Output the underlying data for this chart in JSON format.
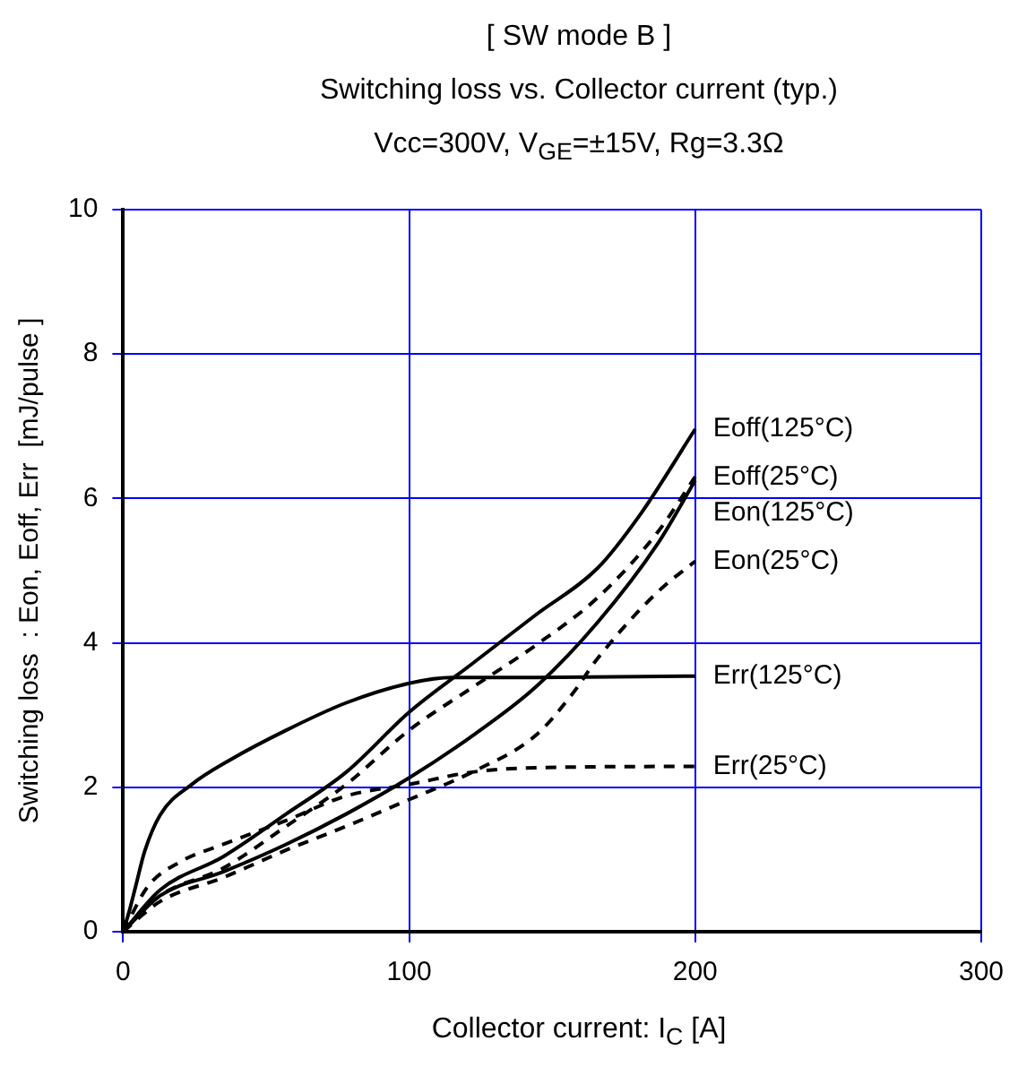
{
  "chart_data": {
    "type": "line",
    "title": "[ SW mode B ]",
    "subtitle": "Switching loss  vs.  Collector current  (typ.)\nVcc=300V,  V$_{GE}$=±15V,  Rg=3.3Ω",
    "xlabel": "Collector current: I$_{C}$ [A]",
    "ylabel": "Switching loss  : Eon, Eoff, Err  [mJ/pulse ]",
    "xlim": [
      0,
      300
    ],
    "xticks": [
      0,
      100,
      200,
      300
    ],
    "ylim": [
      0,
      10
    ],
    "yticks": [
      0,
      2,
      4,
      6,
      8,
      10
    ],
    "grid": true,
    "legend": false,
    "marker": "none",
    "series": [
      {
        "name": "Eoff(125°C)",
        "color": "#000000",
        "line_style": "solid",
        "x": [
          0,
          13,
          35,
          57,
          78,
          100,
          122,
          144,
          166,
          181,
          200
        ],
        "values": [
          0,
          0.58,
          1.04,
          1.63,
          2.21,
          3.04,
          3.71,
          4.38,
          5.04,
          5.79,
          6.96
        ]
      },
      {
        "name": "Eoff(25°C)",
        "color": "#000000",
        "line_style": "dashed",
        "x": [
          0,
          13,
          35,
          57,
          78,
          100,
          122,
          144,
          166,
          187,
          200
        ],
        "values": [
          0,
          0.5,
          0.88,
          1.46,
          2.04,
          2.79,
          3.38,
          3.96,
          4.63,
          5.54,
          6.3
        ]
      },
      {
        "name": "Eon(125°C)",
        "color": "#000000",
        "line_style": "solid",
        "x": [
          0,
          13,
          35,
          57,
          78,
          100,
          122,
          144,
          166,
          187,
          200
        ],
        "values": [
          0,
          0.5,
          0.83,
          1.21,
          1.63,
          2.13,
          2.71,
          3.38,
          4.29,
          5.38,
          6.25
        ]
      },
      {
        "name": "Eon(25°C)",
        "color": "#000000",
        "line_style": "dashed",
        "x": [
          0,
          13,
          35,
          57,
          78,
          100,
          122,
          144,
          157,
          166,
          187,
          200
        ],
        "values": [
          0,
          0.42,
          0.75,
          1.13,
          1.46,
          1.83,
          2.21,
          2.71,
          3.29,
          3.79,
          4.71,
          5.13
        ]
      },
      {
        "name": "Err(125°C)",
        "color": "#000000",
        "line_style": "solid",
        "x": [
          0,
          2.2,
          4.4,
          7.6,
          13,
          24,
          37,
          57,
          78,
          100,
          115,
          144,
          200
        ],
        "values": [
          0,
          0.29,
          0.63,
          1.12,
          1.62,
          2.04,
          2.37,
          2.79,
          3.17,
          3.44,
          3.52,
          3.52,
          3.54
        ]
      },
      {
        "name": "Err(25°C)",
        "color": "#000000",
        "line_style": "dashed",
        "x": [
          0,
          8.7,
          19.6,
          35,
          57,
          78,
          100,
          122,
          144,
          200
        ],
        "values": [
          0,
          0.63,
          0.96,
          1.21,
          1.54,
          1.88,
          2.04,
          2.21,
          2.27,
          2.29
        ]
      }
    ]
  }
}
